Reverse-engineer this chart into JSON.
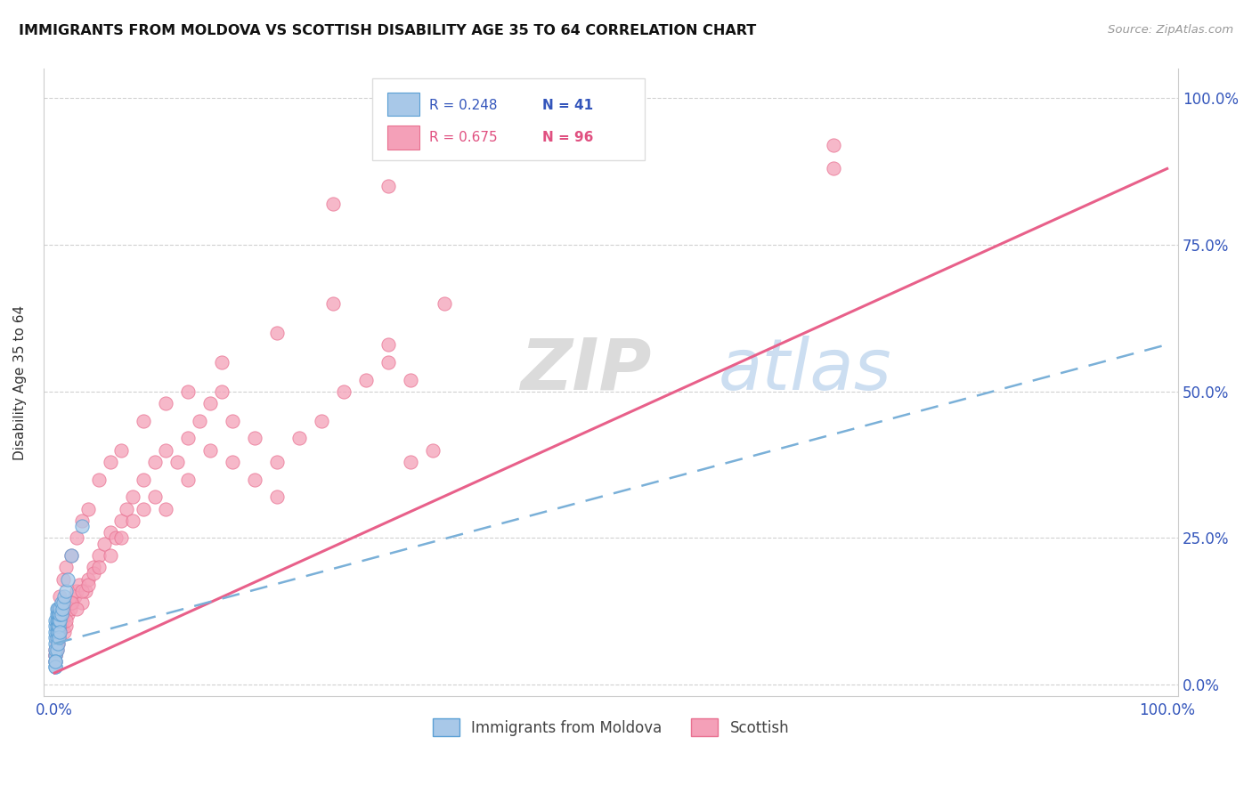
{
  "title": "IMMIGRANTS FROM MOLDOVA VS SCOTTISH DISABILITY AGE 35 TO 64 CORRELATION CHART",
  "source": "Source: ZipAtlas.com",
  "ylabel": "Disability Age 35 to 64",
  "legend_r_blue": "R = 0.248",
  "legend_n_blue": "N = 41",
  "legend_r_pink": "R = 0.675",
  "legend_n_pink": "N = 96",
  "blue_face_color": "#a8c8e8",
  "blue_edge_color": "#5a9fd4",
  "pink_face_color": "#f4a0b8",
  "pink_edge_color": "#e87090",
  "blue_line_color": "#7ab0d8",
  "pink_line_color": "#e8608a",
  "watermark_zip": "ZIP",
  "watermark_atlas": "atlas",
  "blue_scatter_x": [
    0.001,
    0.001,
    0.001,
    0.001,
    0.001,
    0.002,
    0.002,
    0.002,
    0.002,
    0.002,
    0.002,
    0.003,
    0.003,
    0.003,
    0.003,
    0.003,
    0.004,
    0.004,
    0.004,
    0.005,
    0.005,
    0.005,
    0.006,
    0.006,
    0.007,
    0.008,
    0.009,
    0.01,
    0.012,
    0.015,
    0.001,
    0.001,
    0.002,
    0.003,
    0.004,
    0.005,
    0.001,
    0.001,
    0.001,
    0.001,
    0.025
  ],
  "blue_scatter_y": [
    0.07,
    0.08,
    0.09,
    0.1,
    0.11,
    0.08,
    0.09,
    0.1,
    0.11,
    0.12,
    0.13,
    0.09,
    0.1,
    0.11,
    0.12,
    0.13,
    0.1,
    0.11,
    0.12,
    0.11,
    0.12,
    0.13,
    0.12,
    0.14,
    0.13,
    0.14,
    0.15,
    0.16,
    0.18,
    0.22,
    0.05,
    0.06,
    0.06,
    0.07,
    0.08,
    0.09,
    0.03,
    0.04,
    0.03,
    0.04,
    0.27
  ],
  "pink_scatter_x": [
    0.001,
    0.002,
    0.003,
    0.004,
    0.005,
    0.006,
    0.007,
    0.008,
    0.009,
    0.01,
    0.012,
    0.014,
    0.016,
    0.018,
    0.02,
    0.022,
    0.025,
    0.028,
    0.03,
    0.035,
    0.04,
    0.045,
    0.05,
    0.055,
    0.06,
    0.065,
    0.07,
    0.08,
    0.09,
    0.1,
    0.11,
    0.12,
    0.13,
    0.14,
    0.15,
    0.16,
    0.18,
    0.2,
    0.22,
    0.24,
    0.26,
    0.28,
    0.3,
    0.32,
    0.34,
    0.003,
    0.005,
    0.007,
    0.01,
    0.015,
    0.02,
    0.025,
    0.03,
    0.035,
    0.04,
    0.05,
    0.06,
    0.07,
    0.08,
    0.09,
    0.1,
    0.12,
    0.14,
    0.16,
    0.18,
    0.2,
    0.003,
    0.005,
    0.008,
    0.01,
    0.015,
    0.02,
    0.025,
    0.03,
    0.04,
    0.05,
    0.06,
    0.08,
    0.1,
    0.12,
    0.15,
    0.2,
    0.25,
    0.3,
    0.32,
    0.35,
    0.7,
    0.7,
    0.25,
    0.3,
    0.001,
    0.001,
    0.001,
    0.002,
    0.002,
    0.003
  ],
  "pink_scatter_y": [
    0.05,
    0.06,
    0.07,
    0.08,
    0.09,
    0.1,
    0.11,
    0.12,
    0.09,
    0.1,
    0.12,
    0.13,
    0.14,
    0.15,
    0.16,
    0.17,
    0.14,
    0.16,
    0.18,
    0.2,
    0.22,
    0.24,
    0.26,
    0.25,
    0.28,
    0.3,
    0.32,
    0.35,
    0.38,
    0.4,
    0.38,
    0.42,
    0.45,
    0.48,
    0.5,
    0.45,
    0.42,
    0.38,
    0.42,
    0.45,
    0.5,
    0.52,
    0.55,
    0.38,
    0.4,
    0.08,
    0.1,
    0.12,
    0.11,
    0.14,
    0.13,
    0.16,
    0.17,
    0.19,
    0.2,
    0.22,
    0.25,
    0.28,
    0.3,
    0.32,
    0.3,
    0.35,
    0.4,
    0.38,
    0.35,
    0.32,
    0.13,
    0.15,
    0.18,
    0.2,
    0.22,
    0.25,
    0.28,
    0.3,
    0.35,
    0.38,
    0.4,
    0.45,
    0.48,
    0.5,
    0.55,
    0.6,
    0.65,
    0.58,
    0.52,
    0.65,
    0.92,
    0.88,
    0.82,
    0.85,
    0.04,
    0.05,
    0.06,
    0.07,
    0.08,
    0.09
  ],
  "pink_line_x0": 0.0,
  "pink_line_y0": 0.02,
  "pink_line_x1": 1.0,
  "pink_line_y1": 0.88,
  "blue_line_x0": 0.0,
  "blue_line_y0": 0.07,
  "blue_line_x1": 1.0,
  "blue_line_y1": 0.58,
  "xlim": [
    0.0,
    1.0
  ],
  "ylim": [
    0.0,
    1.0
  ],
  "figsize": [
    14.06,
    8.92
  ],
  "dpi": 100
}
